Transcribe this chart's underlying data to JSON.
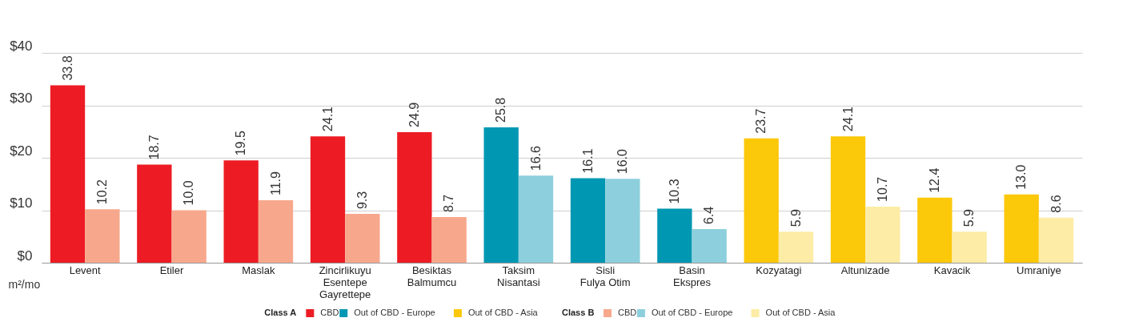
{
  "chart_data": {
    "type": "bar",
    "ylabel": "m²/mo",
    "categories": [
      "Levent",
      "Etiler",
      "Maslak",
      "Zincirlikuyu\nEsentepe\nGayrettepe",
      "Besiktas\nBalmumcu",
      "Taksim\nNisantasi",
      "Sisli\nFulya Otim",
      "Basin\nEkspres",
      "Kozyatagi",
      "Altunizade",
      "Kavacik",
      "Umraniye"
    ],
    "ylim": [
      0,
      40
    ],
    "yticks": [
      {
        "value": 0,
        "label": "$0"
      },
      {
        "value": 10,
        "label": "$10"
      },
      {
        "value": 20,
        "label": "$20"
      },
      {
        "value": 30,
        "label": "$30"
      },
      {
        "value": 40,
        "label": "$40"
      }
    ],
    "grid": "y",
    "legend": "bottom",
    "annotations": [
      "Class A",
      "Class B"
    ],
    "series": [
      {
        "name": "CBD",
        "color": "#ed1c24",
        "values": [
          33.8,
          18.7,
          19.5,
          24.1,
          24.9,
          null,
          null,
          null,
          null,
          null,
          null,
          null
        ],
        "value_labels": [
          "33.8",
          "18.7",
          "19.5",
          "24.1",
          "24.9",
          null,
          null,
          null,
          null,
          null,
          null,
          null
        ]
      },
      {
        "name": "Out of CBD - Europe",
        "color": "#0097b2",
        "values": [
          null,
          null,
          null,
          null,
          null,
          25.8,
          16.1,
          10.3,
          null,
          null,
          null,
          null
        ],
        "value_labels": [
          null,
          null,
          null,
          null,
          null,
          "25.8",
          "16.1",
          "10.3",
          null,
          null,
          null,
          null
        ]
      },
      {
        "name": "Out of CBD - Asia",
        "color": "#fcc80a",
        "values": [
          null,
          null,
          null,
          null,
          null,
          null,
          null,
          null,
          23.7,
          24.1,
          12.4,
          13.0
        ],
        "value_labels": [
          null,
          null,
          null,
          null,
          null,
          null,
          null,
          null,
          "23.7",
          "24.1",
          "12.4",
          "13.0"
        ]
      },
      {
        "name": "CBD",
        "color": "#f7a88c",
        "values": [
          10.2,
          10.0,
          11.9,
          9.3,
          8.7,
          null,
          null,
          null,
          null,
          null,
          null,
          null
        ],
        "value_labels": [
          "10.2",
          "10.0",
          "11.9",
          "9.3",
          "8.7",
          null,
          null,
          null,
          null,
          null,
          null,
          null
        ]
      },
      {
        "name": "Out of CBD - Europe",
        "color": "#8ecfdd",
        "values": [
          null,
          null,
          null,
          null,
          null,
          16.6,
          16.0,
          6.4,
          null,
          null,
          null,
          null
        ],
        "value_labels": [
          null,
          null,
          null,
          null,
          null,
          "16.6",
          "16.0",
          "6.4",
          null,
          null,
          null,
          null
        ]
      },
      {
        "name": "Out of CBD - Asia",
        "color": "#fdeca6",
        "values": [
          null,
          null,
          null,
          null,
          null,
          null,
          null,
          null,
          5.9,
          10.7,
          5.9,
          8.6
        ],
        "value_labels": [
          null,
          null,
          null,
          null,
          null,
          null,
          null,
          null,
          "5.9",
          "10.7",
          "5.9",
          "8.6"
        ]
      }
    ]
  }
}
